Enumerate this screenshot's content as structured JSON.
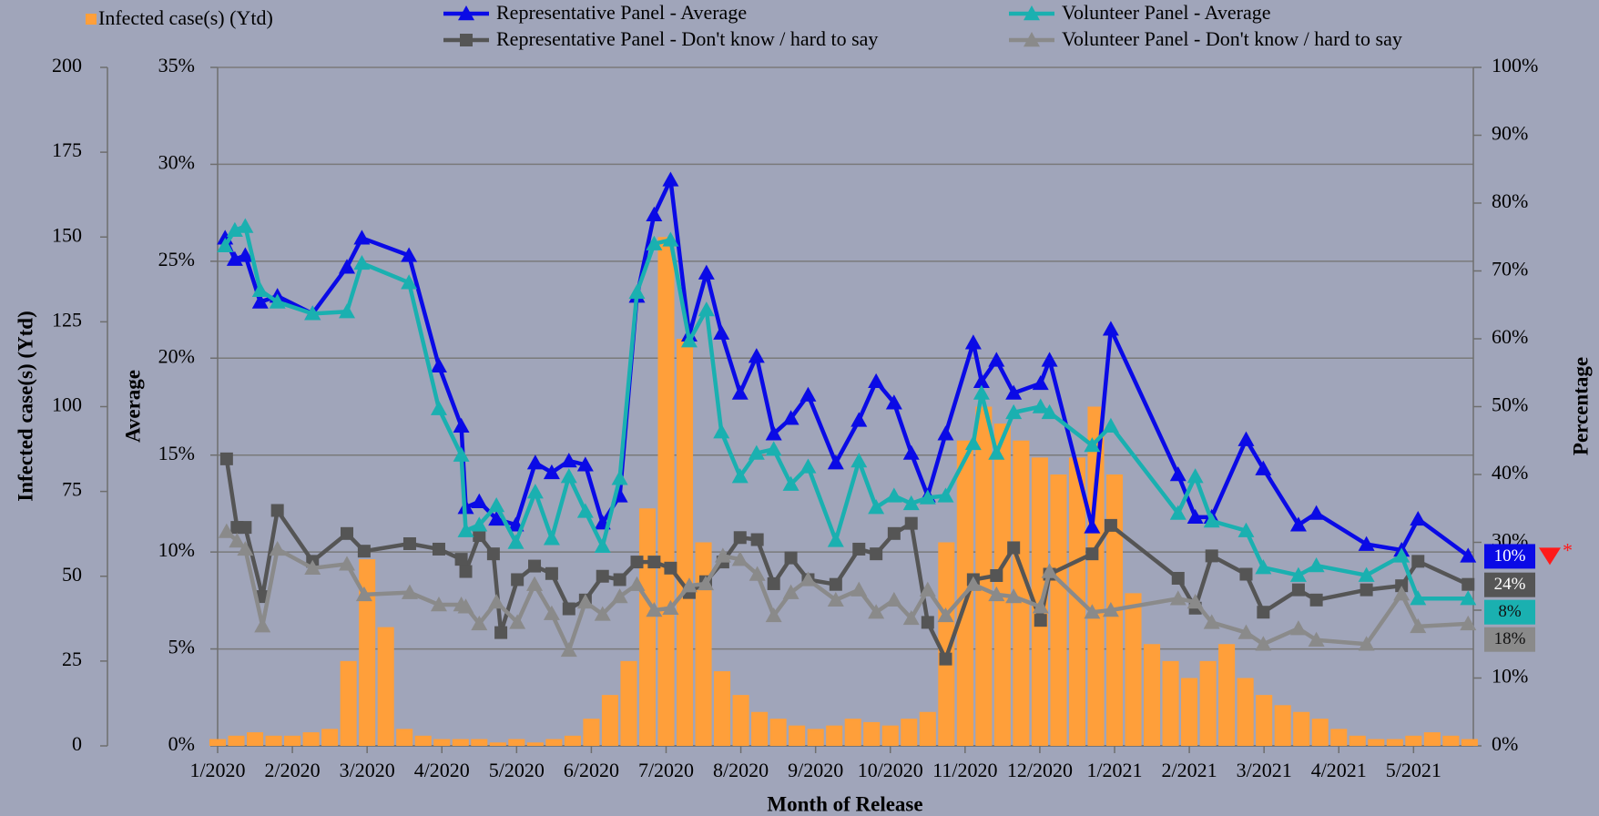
{
  "chart_data": {
    "type": "combo",
    "xlabel": "Month of Release",
    "ylabel": "Infected case(s) (Ytd)",
    "y2label": "Average",
    "y3label": "Percentage",
    "xlim": [
      0,
      16.8
    ],
    "xticks": [
      {
        "value": 0,
        "label": "1/2020"
      },
      {
        "value": 1,
        "label": "2/2020"
      },
      {
        "value": 2,
        "label": "3/2020"
      },
      {
        "value": 3,
        "label": "4/2020"
      },
      {
        "value": 4,
        "label": "5/2020"
      },
      {
        "value": 5,
        "label": "6/2020"
      },
      {
        "value": 6,
        "label": "7/2020"
      },
      {
        "value": 7,
        "label": "8/2020"
      },
      {
        "value": 8,
        "label": "9/2020"
      },
      {
        "value": 9,
        "label": "10/2020"
      },
      {
        "value": 10,
        "label": "11/2020"
      },
      {
        "value": 11,
        "label": "12/2020"
      },
      {
        "value": 12,
        "label": "1/2021"
      },
      {
        "value": 13,
        "label": "2/2021"
      },
      {
        "value": 14,
        "label": "3/2021"
      },
      {
        "value": 15,
        "label": "4/2021"
      },
      {
        "value": 16,
        "label": "5/2021"
      }
    ],
    "ylim": [
      0,
      200
    ],
    "yticks": [
      0,
      25,
      50,
      75,
      100,
      125,
      150,
      175,
      200
    ],
    "y2lim": [
      0,
      35
    ],
    "y2ticks": [
      {
        "value": 0,
        "label": "0%"
      },
      {
        "value": 5,
        "label": "5%"
      },
      {
        "value": 10,
        "label": "10%"
      },
      {
        "value": 15,
        "label": "15%"
      },
      {
        "value": 20,
        "label": "20%"
      },
      {
        "value": 25,
        "label": "25%"
      },
      {
        "value": 30,
        "label": "30%"
      },
      {
        "value": 35,
        "label": "35%"
      }
    ],
    "y3lim": [
      0,
      100
    ],
    "y3ticks": [
      {
        "value": 0,
        "label": "0%"
      },
      {
        "value": 10,
        "label": "10%"
      },
      {
        "value": 20,
        "label": "20%"
      },
      {
        "value": 30,
        "label": "30%"
      },
      {
        "value": 40,
        "label": "40%"
      },
      {
        "value": 50,
        "label": "50%"
      },
      {
        "value": 60,
        "label": "60%"
      },
      {
        "value": 70,
        "label": "70%"
      },
      {
        "value": 80,
        "label": "80%"
      },
      {
        "value": 90,
        "label": "90%"
      },
      {
        "value": 100,
        "label": "100%"
      }
    ],
    "grid": true,
    "series": [
      {
        "name": "Infected case(s) (Ytd)",
        "type": "bar",
        "color": "#ff9f3a",
        "x": [
          0,
          0.25,
          0.5,
          0.75,
          1,
          1.25,
          1.5,
          1.75,
          2,
          2.25,
          2.5,
          2.75,
          3,
          3.25,
          3.5,
          3.75,
          4,
          4.25,
          4.5,
          4.75,
          5,
          5.25,
          5.5,
          5.75,
          6,
          6.25,
          6.5,
          6.75,
          7,
          7.25,
          7.5,
          7.75,
          8,
          8.25,
          8.5,
          8.75,
          9,
          9.25,
          9.5,
          9.75,
          10,
          10.25,
          10.5,
          10.75,
          11,
          11.25,
          11.5,
          11.75,
          12,
          12.25,
          12.5,
          12.75,
          13,
          13.25,
          13.5,
          13.75,
          14,
          14.25,
          14.5,
          14.75,
          15,
          15.25,
          15.5,
          15.75,
          16,
          16.25,
          16.5,
          16.75
        ],
        "values": [
          2,
          3,
          4,
          3,
          3,
          4,
          5,
          25,
          55,
          35,
          5,
          3,
          2,
          2,
          2,
          1,
          2,
          1,
          2,
          3,
          8,
          15,
          25,
          70,
          150,
          120,
          60,
          22,
          15,
          10,
          8,
          6,
          5,
          6,
          8,
          7,
          6,
          8,
          10,
          60,
          90,
          100,
          95,
          90,
          85,
          80,
          85,
          100,
          80,
          45,
          30,
          25,
          20,
          25,
          30,
          20,
          15,
          12,
          10,
          8,
          5,
          3,
          2,
          2,
          3,
          4,
          3,
          2
        ]
      },
      {
        "name": "Representative Panel - Average",
        "type": "line",
        "axis": "y2",
        "color": "#0a0ae6",
        "marker": "triangle",
        "end_label": "10%",
        "end_flag": "*",
        "x": [
          0.1,
          0.23,
          0.37,
          0.57,
          0.8,
          1.27,
          1.73,
          1.93,
          2.56,
          2.96,
          3.26,
          3.32,
          3.5,
          3.73,
          3.99,
          4.25,
          4.47,
          4.7,
          4.92,
          5.15,
          5.38,
          5.61,
          5.84,
          6.06,
          6.31,
          6.54,
          6.74,
          6.99,
          7.21,
          7.44,
          7.67,
          7.9,
          8.27,
          8.58,
          8.81,
          9.05,
          9.28,
          9.5,
          9.74,
          10.11,
          10.22,
          10.42,
          10.65,
          11.01,
          11.13,
          11.7,
          11.95,
          12.85,
          13.08,
          13.3,
          13.76,
          13.99,
          14.46,
          14.7,
          15.37,
          15.84,
          16.06,
          16.73
        ],
        "values": [
          26.2,
          25.1,
          25.3,
          22.9,
          23.2,
          22.3,
          24.7,
          26.2,
          25.3,
          19.6,
          16.5,
          12.3,
          12.6,
          11.7,
          11.4,
          14.6,
          14.1,
          14.7,
          14.5,
          11.5,
          12.9,
          23.2,
          27.4,
          29.2,
          21.2,
          24.4,
          21.3,
          18.2,
          20.1,
          16.1,
          16.9,
          18.1,
          14.6,
          16.8,
          18.8,
          17.7,
          15.1,
          12.9,
          16.1,
          20.8,
          18.8,
          19.9,
          18.2,
          18.7,
          19.9,
          11.3,
          21.5,
          14.0,
          11.8,
          11.8,
          15.8,
          14.3,
          11.4,
          12.0,
          10.4,
          10.1,
          11.7,
          9.8
        ]
      },
      {
        "name": "Representative Panel - Don't know / hard to say",
        "type": "line",
        "axis": "y3",
        "color": "#555555",
        "marker": "square",
        "end_label": "24%",
        "x": [
          0.12,
          0.26,
          0.37,
          0.6,
          0.8,
          1.27,
          1.73,
          1.96,
          2.57,
          2.96,
          3.26,
          3.32,
          3.5,
          3.69,
          3.79,
          4.01,
          4.24,
          4.47,
          4.7,
          4.92,
          5.15,
          5.38,
          5.61,
          5.84,
          6.06,
          6.31,
          6.53,
          6.76,
          6.99,
          7.22,
          7.44,
          7.67,
          7.9,
          8.27,
          8.58,
          8.81,
          9.05,
          9.28,
          9.5,
          9.74,
          10.11,
          10.42,
          10.65,
          11.01,
          11.13,
          11.7,
          11.95,
          12.85,
          13.08,
          13.3,
          13.76,
          13.99,
          14.46,
          14.7,
          15.37,
          15.84,
          16.06,
          16.73
        ],
        "values": [
          42.3,
          32.2,
          32.2,
          22.0,
          34.7,
          27.2,
          31.3,
          28.7,
          29.8,
          29.0,
          27.5,
          25.7,
          31.0,
          28.3,
          16.7,
          24.5,
          26.5,
          25.4,
          20.2,
          21.5,
          25.0,
          24.5,
          27.1,
          27.1,
          26.2,
          22.6,
          24.2,
          27.1,
          30.7,
          30.4,
          23.9,
          27.7,
          24.5,
          23.8,
          29.0,
          28.3,
          31.3,
          32.8,
          18.2,
          12.8,
          24.5,
          25.1,
          29.2,
          18.5,
          25.3,
          28.3,
          32.5,
          24.7,
          20.3,
          28.0,
          25.3,
          19.7,
          23.0,
          21.5,
          23.0,
          23.6,
          27.2,
          23.8
        ]
      },
      {
        "name": "Volunteer Panel - Average",
        "type": "line",
        "axis": "y2",
        "color": "#1ab0b0",
        "marker": "triangle",
        "end_label": "8%",
        "x": [
          0.1,
          0.23,
          0.37,
          0.57,
          0.8,
          1.27,
          1.73,
          1.93,
          2.56,
          2.96,
          3.26,
          3.32,
          3.5,
          3.73,
          3.99,
          4.25,
          4.47,
          4.7,
          4.92,
          5.15,
          5.38,
          5.61,
          5.84,
          6.06,
          6.31,
          6.54,
          6.74,
          6.99,
          7.21,
          7.44,
          7.67,
          7.9,
          8.27,
          8.58,
          8.81,
          9.05,
          9.28,
          9.5,
          9.74,
          10.11,
          10.22,
          10.42,
          10.65,
          11.01,
          11.13,
          11.7,
          11.95,
          12.85,
          13.08,
          13.3,
          13.76,
          13.99,
          14.46,
          14.7,
          15.37,
          15.84,
          16.06,
          16.73
        ],
        "values": [
          25.8,
          26.6,
          26.8,
          23.5,
          22.9,
          22.3,
          22.4,
          24.9,
          23.9,
          17.4,
          15.0,
          11.1,
          11.4,
          12.4,
          10.5,
          13.1,
          10.7,
          13.9,
          12.1,
          10.3,
          13.8,
          23.4,
          25.9,
          26.1,
          20.9,
          22.5,
          16.2,
          13.9,
          15.1,
          15.3,
          13.5,
          14.4,
          10.6,
          14.7,
          12.3,
          12.9,
          12.5,
          12.8,
          12.9,
          15.6,
          18.2,
          15.1,
          17.2,
          17.5,
          17.2,
          15.5,
          16.5,
          12.0,
          13.9,
          11.6,
          11.1,
          9.2,
          8.8,
          9.3,
          8.8,
          9.8,
          7.6,
          7.6
        ]
      },
      {
        "name": "Volunteer Panel - Don't know / hard to say",
        "type": "line",
        "axis": "y3",
        "color": "#8a8a8a",
        "marker": "triangle",
        "end_label": "18%",
        "x": [
          0.12,
          0.26,
          0.37,
          0.6,
          0.8,
          1.27,
          1.73,
          1.96,
          2.57,
          2.96,
          3.26,
          3.32,
          3.5,
          3.73,
          4.01,
          4.24,
          4.47,
          4.7,
          4.92,
          5.15,
          5.38,
          5.61,
          5.84,
          6.06,
          6.31,
          6.53,
          6.76,
          6.99,
          7.22,
          7.44,
          7.67,
          7.9,
          8.27,
          8.58,
          8.81,
          9.05,
          9.28,
          9.5,
          9.74,
          10.11,
          10.42,
          10.65,
          11.01,
          11.13,
          11.7,
          11.95,
          12.85,
          13.08,
          13.3,
          13.76,
          13.99,
          14.46,
          14.7,
          15.37,
          15.84,
          16.06,
          16.73
        ],
        "values": [
          31.6,
          30.2,
          29.0,
          17.7,
          29.0,
          26.2,
          26.8,
          22.3,
          22.6,
          20.8,
          20.8,
          20.5,
          18.0,
          21.2,
          18.2,
          23.8,
          19.5,
          14.1,
          21.2,
          19.4,
          22.0,
          23.8,
          20.0,
          20.3,
          23.6,
          23.9,
          28.0,
          27.5,
          25.3,
          19.2,
          22.6,
          24.5,
          21.5,
          23.0,
          19.7,
          21.5,
          18.8,
          23.0,
          19.2,
          23.8,
          22.3,
          22.0,
          20.5,
          25.7,
          19.7,
          20.0,
          21.7,
          21.2,
          18.2,
          16.7,
          15.0,
          17.3,
          15.6,
          15.0,
          22.4,
          17.6,
          18.0
        ]
      }
    ]
  }
}
